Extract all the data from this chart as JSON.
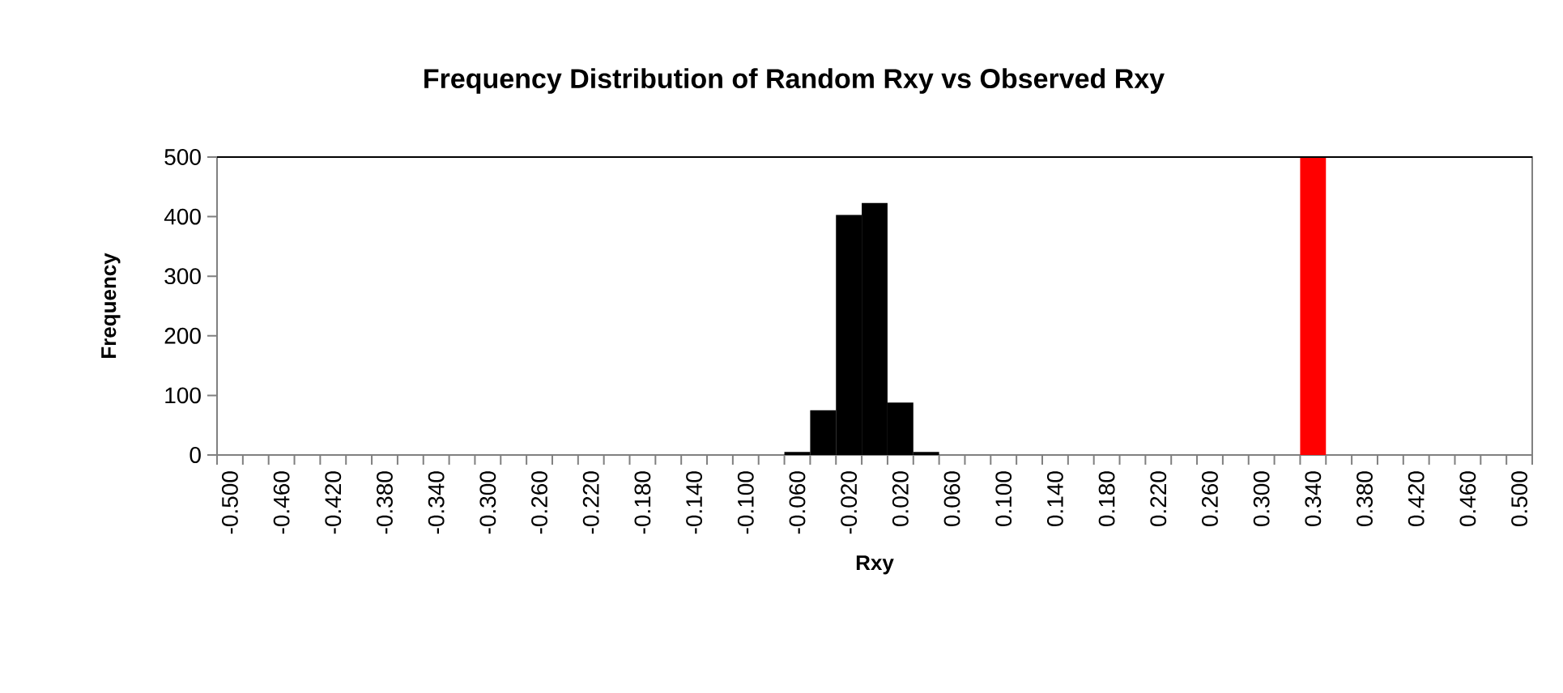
{
  "chart_data": {
    "type": "bar",
    "title": "Frequency Distribution of Random Rxy vs Observed Rxy",
    "xlabel": "Rxy",
    "ylabel": "Frequency",
    "categories": [
      "-0.500",
      null,
      "-0.460",
      null,
      "-0.420",
      null,
      "-0.380",
      null,
      "-0.340",
      null,
      "-0.300",
      null,
      "-0.260",
      null,
      "-0.220",
      null,
      "-0.180",
      null,
      "-0.140",
      null,
      "-0.100",
      null,
      "-0.060",
      null,
      "-0.020",
      null,
      "0.020",
      null,
      "0.060",
      null,
      "0.100",
      null,
      "0.140",
      null,
      "0.180",
      null,
      "0.220",
      null,
      "0.260",
      null,
      "0.300",
      null,
      "0.340",
      null,
      "0.380",
      null,
      "0.420",
      null,
      "0.460",
      null,
      "0.500"
    ],
    "values": [
      0,
      0,
      0,
      0,
      0,
      0,
      0,
      0,
      0,
      0,
      0,
      0,
      0,
      0,
      0,
      0,
      0,
      0,
      0,
      0,
      0,
      0,
      5,
      75,
      403,
      423,
      88,
      5,
      0,
      0,
      0,
      0,
      0,
      0,
      0,
      0,
      0,
      0,
      0,
      0,
      0,
      0,
      500,
      0,
      0,
      0,
      0,
      0,
      0,
      0,
      0
    ],
    "colors": [
      "#000000",
      "#000000",
      "#000000",
      "#000000",
      "#000000",
      "#000000",
      "#000000",
      "#000000",
      "#000000",
      "#000000",
      "#000000",
      "#000000",
      "#000000",
      "#000000",
      "#000000",
      "#000000",
      "#000000",
      "#000000",
      "#000000",
      "#000000",
      "#000000",
      "#000000",
      "#000000",
      "#000000",
      "#000000",
      "#000000",
      "#000000",
      "#000000",
      "#000000",
      "#000000",
      "#000000",
      "#000000",
      "#000000",
      "#000000",
      "#000000",
      "#000000",
      "#000000",
      "#000000",
      "#000000",
      "#000000",
      "#000000",
      "#000000",
      "#ff0000",
      "#000000",
      "#000000",
      "#000000",
      "#000000",
      "#000000",
      "#000000",
      "#000000",
      "#000000"
    ],
    "ylim": [
      0,
      500
    ],
    "yticks": [
      0,
      100,
      200,
      300,
      400,
      500
    ],
    "grid": false
  }
}
